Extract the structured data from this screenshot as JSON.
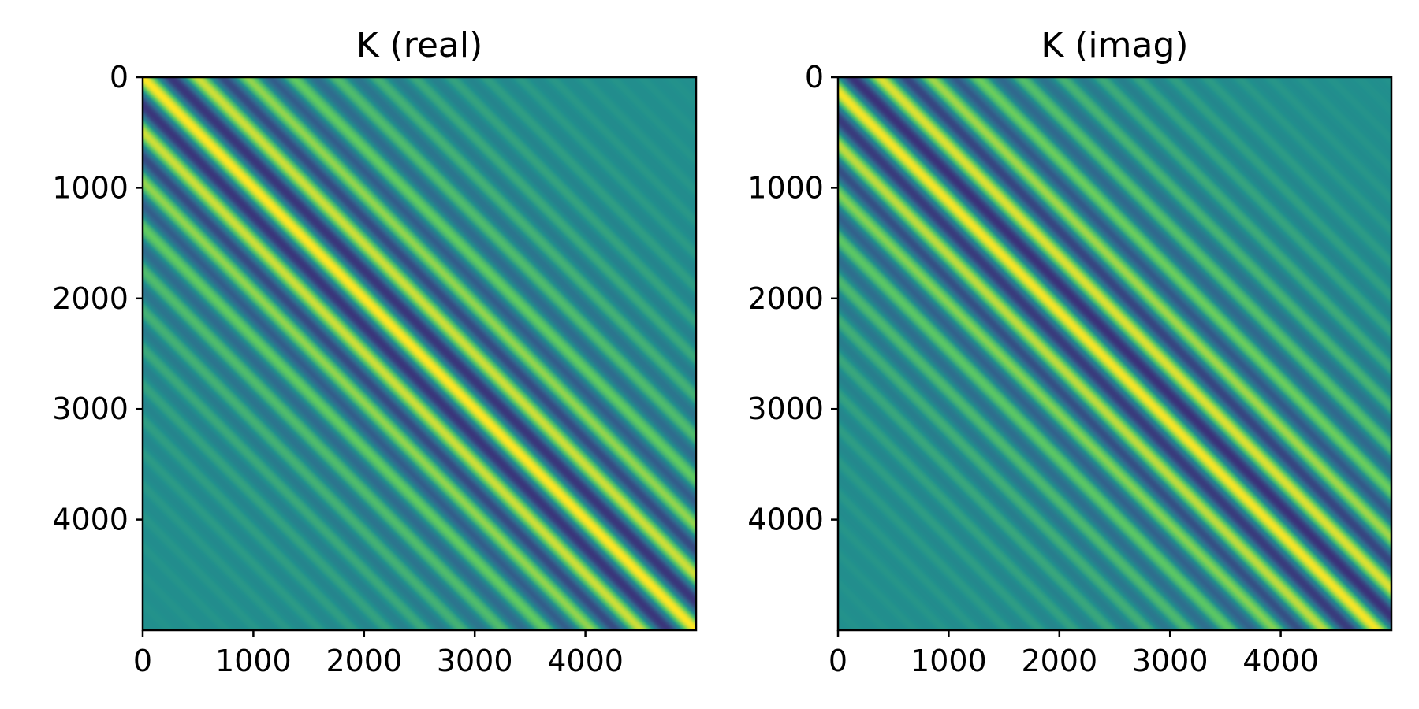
{
  "chart_data": [
    {
      "type": "heatmap",
      "title": "K (real)",
      "xlim": [
        0,
        5000
      ],
      "ylim": [
        5000,
        0
      ],
      "x_ticks": [
        0,
        1000,
        2000,
        3000,
        4000
      ],
      "y_ticks": [
        0,
        1000,
        2000,
        3000,
        4000
      ],
      "x_tick_labels": [
        "0",
        "1000",
        "2000",
        "3000",
        "4000"
      ],
      "y_tick_labels": [
        "0",
        "1000",
        "2000",
        "3000",
        "4000"
      ],
      "colormap": "viridis",
      "pattern": "diagonal-band",
      "value_range": [
        -1,
        1
      ],
      "band_center_value": 1,
      "colors": {
        "background": "#21908d",
        "high": "#fde725",
        "low": "#3b2f78"
      }
    },
    {
      "type": "heatmap",
      "title": "K (imag)",
      "xlim": [
        0,
        5000
      ],
      "ylim": [
        5000,
        0
      ],
      "x_ticks": [
        0,
        1000,
        2000,
        3000,
        4000
      ],
      "y_ticks": [
        0,
        1000,
        2000,
        3000,
        4000
      ],
      "x_tick_labels": [
        "0",
        "1000",
        "2000",
        "3000",
        "4000"
      ],
      "y_tick_labels": [
        "0",
        "1000",
        "2000",
        "3000",
        "4000"
      ],
      "colormap": "viridis",
      "pattern": "diagonal-band",
      "value_range": [
        -1,
        1
      ],
      "band_center_value": 0,
      "colors": {
        "background": "#21908d",
        "high": "#fde725",
        "low": "#3b2f78"
      }
    }
  ]
}
